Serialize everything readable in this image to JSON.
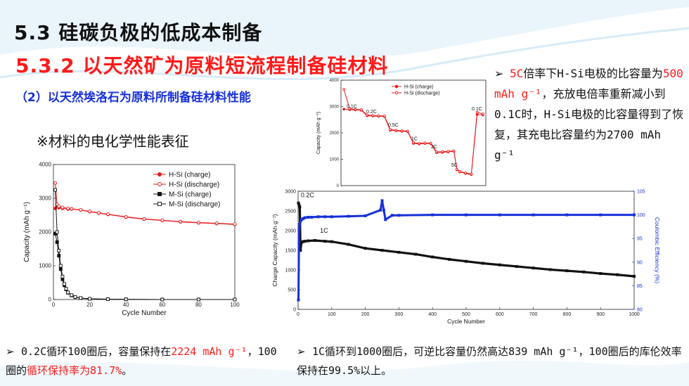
{
  "slide": {
    "title": "5.3 硅碳负极的低成本制备",
    "subtitle": "5.3.2 以天然矿为原料短流程制备硅材料",
    "section": "（2）以天然埃洛石为原料所制备硅材料性能",
    "subheading": "※材料的电化学性能表征",
    "arrow": "➢"
  },
  "notes": {
    "right": {
      "p1": "5C",
      "p2": "倍率下H-Si电极的比容量为",
      "p3": "500 mAh g⁻¹",
      "p4": "，充放电倍率重新减小到0.1C时，H-Si电极的比容量得到了恢复，其充电比容量约为2700 mAh g⁻¹"
    },
    "bottom_left": {
      "p1": "0.2C循环100圈后，容量保持在",
      "p2": "2224 mAh g⁻¹",
      "p3": "，100圈的",
      "p4": "循环保持率为81.7%",
      "p5": "。"
    },
    "bottom_right": {
      "p1": "1C循环到1000圈后，可逆比容量仍然高达839 mAh g⁻¹，100圈后的库伦效率保持在99.5%以上。"
    }
  },
  "colors": {
    "red": "#ff1a1a",
    "blue": "#1730d8",
    "black": "#111111"
  },
  "chart_data": [
    {
      "type": "line",
      "xlabel": "Cycle Number",
      "ylabel": "Capacity (mAh g⁻¹)",
      "xlim": [
        0,
        100
      ],
      "ylim": [
        0,
        4000
      ],
      "xticks": [
        0,
        20,
        40,
        60,
        80,
        100
      ],
      "yticks": [
        0,
        1000,
        2000,
        3000,
        4000
      ],
      "legend": "top-right",
      "series": [
        {
          "name": "H-Si (charge)",
          "color": "#e8191b",
          "marker": "filled-circle",
          "x": [
            1,
            2,
            3,
            5,
            8,
            10,
            15,
            20,
            25,
            30,
            40,
            50,
            60,
            70,
            80,
            90,
            100
          ],
          "y": [
            2700,
            2780,
            2720,
            2700,
            2680,
            2680,
            2650,
            2600,
            2560,
            2520,
            2440,
            2380,
            2340,
            2300,
            2270,
            2250,
            2224
          ]
        },
        {
          "name": "H-Si (discharge)",
          "color": "#e8191b",
          "marker": "open-circle",
          "x": [
            1,
            2,
            3,
            5,
            8,
            10,
            15,
            20,
            25,
            30,
            40,
            50,
            60,
            70,
            80,
            90,
            100
          ],
          "y": [
            3450,
            2820,
            2760,
            2730,
            2700,
            2690,
            2660,
            2610,
            2570,
            2530,
            2450,
            2390,
            2350,
            2310,
            2280,
            2260,
            2235
          ]
        },
        {
          "name": "M-Si (charge)",
          "color": "#111111",
          "marker": "filled-square",
          "x": [
            1,
            2,
            3,
            4,
            5,
            6,
            7,
            8,
            10,
            12,
            15,
            20,
            30,
            40,
            60,
            80,
            100
          ],
          "y": [
            1950,
            1700,
            1300,
            900,
            600,
            420,
            300,
            200,
            120,
            70,
            40,
            20,
            10,
            5,
            0,
            0,
            0
          ]
        },
        {
          "name": "M-Si (discharge)",
          "color": "#111111",
          "marker": "open-square",
          "x": [
            1,
            2,
            3,
            4,
            5,
            6,
            7,
            8,
            10,
            12,
            15,
            20,
            30,
            40,
            60,
            80,
            100
          ],
          "y": [
            3250,
            2000,
            1450,
            1000,
            680,
            460,
            320,
            210,
            130,
            75,
            45,
            22,
            10,
            5,
            0,
            0,
            0
          ]
        }
      ]
    },
    {
      "type": "line",
      "xlabel": "",
      "ylabel": "Capacity (mAh g⁻¹)",
      "xlim": [
        0,
        50
      ],
      "ylim": [
        0,
        4000
      ],
      "yticks": [
        0,
        1000,
        2000,
        3000,
        4000
      ],
      "legend": "top-center",
      "annotations": [
        "0.1C",
        "0.2C",
        "0.5C",
        "1C",
        "2C",
        "5C",
        "0.1C"
      ],
      "series": [
        {
          "name": "H-Si (charge)",
          "color": "#e8191b",
          "marker": "filled-circle",
          "x": [
            1,
            3,
            5,
            7,
            9,
            11,
            13,
            15,
            17,
            19,
            21,
            23,
            25,
            27,
            29,
            31,
            33,
            35,
            37,
            39,
            40,
            41,
            43,
            45,
            47,
            49
          ],
          "y": [
            2900,
            2880,
            2870,
            2860,
            2650,
            2640,
            2630,
            2620,
            2100,
            2080,
            2060,
            2050,
            1600,
            1580,
            1600,
            1590,
            1250,
            1260,
            1280,
            1300,
            600,
            520,
            460,
            420,
            2700,
            2680
          ]
        },
        {
          "name": "H-Si (discharge)",
          "color": "#e8191b",
          "marker": "open-circle",
          "x": [
            1,
            3,
            5,
            7,
            9,
            11,
            13,
            15,
            17,
            19,
            21,
            23,
            25,
            27,
            29,
            31,
            33,
            35,
            37,
            39,
            40,
            41,
            43,
            45,
            47,
            49
          ],
          "y": [
            3650,
            2920,
            2890,
            2880,
            2680,
            2660,
            2650,
            2640,
            2130,
            2100,
            2080,
            2070,
            1630,
            1600,
            1620,
            1610,
            1280,
            1290,
            1300,
            1320,
            620,
            540,
            480,
            440,
            2780,
            2720
          ]
        }
      ]
    },
    {
      "type": "scatter",
      "xlabel": "Cycle Number",
      "ylabel": "Charge Capacity (mAh g⁻¹)",
      "y2label": "Coulombic Efficiency (%)",
      "xlim": [
        0,
        1000
      ],
      "ylim": [
        0,
        3000
      ],
      "y2lim": [
        80,
        105
      ],
      "xticks": [
        0,
        100,
        200,
        300,
        400,
        500,
        600,
        700,
        800,
        900,
        1000
      ],
      "yticks": [
        0,
        500,
        1000,
        1500,
        2000,
        2500,
        3000
      ],
      "y2ticks": [
        80,
        85,
        90,
        95,
        100,
        105
      ],
      "annotations": [
        "0.2C",
        "1C"
      ],
      "series": [
        {
          "name": "Charge capacity",
          "color": "#111111",
          "axis": "left",
          "x": [
            1,
            3,
            5,
            7,
            10,
            15,
            20,
            30,
            50,
            80,
            100,
            150,
            200,
            250,
            300,
            350,
            400,
            450,
            500,
            550,
            600,
            650,
            700,
            750,
            800,
            850,
            900,
            950,
            1000
          ],
          "y": [
            2700,
            2650,
            2600,
            1500,
            1700,
            1720,
            1730,
            1740,
            1750,
            1730,
            1720,
            1650,
            1550,
            1500,
            1450,
            1400,
            1330,
            1270,
            1220,
            1170,
            1130,
            1090,
            1050,
            1010,
            980,
            950,
            910,
            880,
            839
          ]
        },
        {
          "name": "Coulombic efficiency",
          "color": "#1730d8",
          "axis": "right",
          "x": [
            1,
            3,
            5,
            10,
            15,
            20,
            30,
            40,
            60,
            80,
            100,
            150,
            200,
            245,
            250,
            255,
            260,
            280,
            300,
            400,
            500,
            600,
            700,
            800,
            900,
            1000
          ],
          "y": [
            82,
            97,
            98,
            99,
            99.2,
            99.4,
            99.5,
            99.5,
            99.6,
            99.6,
            99.6,
            99.7,
            99.8,
            101,
            103,
            101,
            99,
            99.9,
            99.9,
            100,
            100,
            100,
            100,
            100,
            100,
            100
          ]
        }
      ]
    }
  ]
}
